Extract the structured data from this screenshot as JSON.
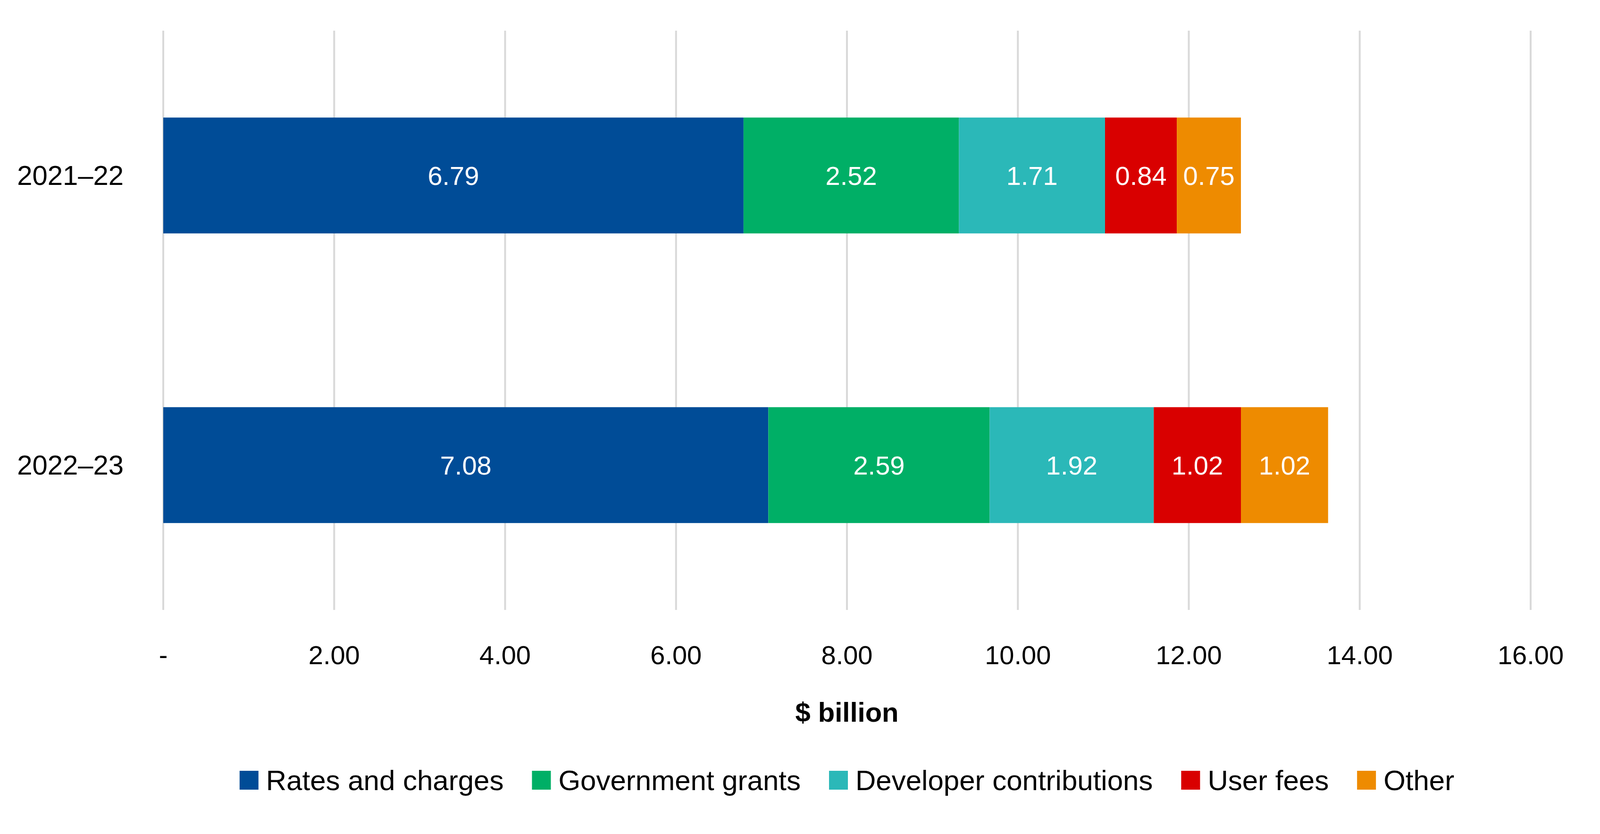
{
  "chart_data": {
    "type": "bar",
    "orientation": "horizontal",
    "stacked": true,
    "data_labels": true,
    "grid": true,
    "legend": "bottom",
    "x_label": "$ billion",
    "categories": [
      "2021–22",
      "2022–23"
    ],
    "xlim": [
      0,
      16
    ],
    "xticks": [
      {
        "value": 0,
        "label": "-"
      },
      {
        "value": 2,
        "label": "2.00"
      },
      {
        "value": 4,
        "label": "4.00"
      },
      {
        "value": 6,
        "label": "6.00"
      },
      {
        "value": 8,
        "label": "8.00"
      },
      {
        "value": 10,
        "label": "10.00"
      },
      {
        "value": 12,
        "label": "12.00"
      },
      {
        "value": 14,
        "label": "14.00"
      },
      {
        "value": 16,
        "label": "16.00"
      }
    ],
    "series": [
      {
        "name": "Rates and charges",
        "color": "#004C97",
        "values": [
          6.79,
          7.08
        ]
      },
      {
        "name": "Government grants",
        "color": "#00AF66",
        "values": [
          2.52,
          2.59
        ]
      },
      {
        "name": "Developer contributions",
        "color": "#2BB8B8",
        "values": [
          1.71,
          1.92
        ]
      },
      {
        "name": "User fees",
        "color": "#D90000",
        "values": [
          0.84,
          1.02
        ]
      },
      {
        "name": "Other",
        "color": "#EE8B00",
        "values": [
          0.75,
          1.02
        ]
      }
    ]
  }
}
